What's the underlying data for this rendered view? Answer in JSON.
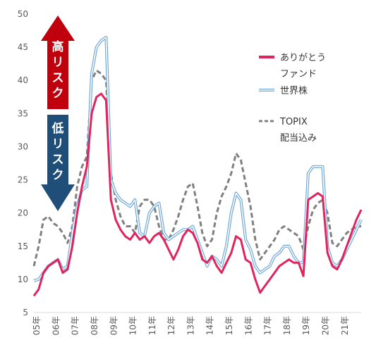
{
  "chart_data": {
    "type": "line",
    "xlabel": "",
    "ylabel": "",
    "ylim": [
      5,
      50
    ],
    "yticks": [
      5,
      10,
      15,
      20,
      25,
      30,
      35,
      40,
      45,
      50
    ],
    "xlim": [
      2005.0,
      2022.0
    ],
    "xticks": [
      {
        "x": 2005,
        "label": "05年"
      },
      {
        "x": 2006,
        "label": "06年"
      },
      {
        "x": 2007,
        "label": "07年"
      },
      {
        "x": 2008,
        "label": "08年"
      },
      {
        "x": 2009,
        "label": "09年"
      },
      {
        "x": 2010,
        "label": "10年"
      },
      {
        "x": 2011,
        "label": "11年"
      },
      {
        "x": 2012,
        "label": "12年"
      },
      {
        "x": 2013,
        "label": "13年"
      },
      {
        "x": 2014,
        "label": "14年"
      },
      {
        "x": 2015,
        "label": "15年"
      },
      {
        "x": 2016,
        "label": "16年"
      },
      {
        "x": 2017,
        "label": "17年"
      },
      {
        "x": 2018,
        "label": "18年"
      },
      {
        "x": 2019,
        "label": "19年"
      },
      {
        "x": 2020,
        "label": "20年"
      },
      {
        "x": 2021,
        "label": "21年"
      }
    ],
    "grid": false,
    "legend_position": "right",
    "arrows": {
      "up": {
        "text": "高リスク",
        "color": "#c0000c"
      },
      "down": {
        "text": "低リスク",
        "color": "#1f4e79"
      }
    },
    "series": [
      {
        "name": "ありがとうファンド",
        "color": "#e0245e",
        "style": "solid",
        "points": [
          [
            2005.0,
            7.5
          ],
          [
            2005.25,
            8.5
          ],
          [
            2005.5,
            11
          ],
          [
            2005.75,
            12
          ],
          [
            2006.0,
            12.5
          ],
          [
            2006.25,
            13
          ],
          [
            2006.5,
            11
          ],
          [
            2006.75,
            11.5
          ],
          [
            2007.0,
            15
          ],
          [
            2007.25,
            20
          ],
          [
            2007.5,
            24
          ],
          [
            2007.75,
            27
          ],
          [
            2008.0,
            35
          ],
          [
            2008.25,
            37.5
          ],
          [
            2008.5,
            38
          ],
          [
            2008.75,
            37
          ],
          [
            2009.0,
            22
          ],
          [
            2009.25,
            19
          ],
          [
            2009.5,
            17.5
          ],
          [
            2009.75,
            16.5
          ],
          [
            2010.0,
            16
          ],
          [
            2010.25,
            17
          ],
          [
            2010.5,
            16
          ],
          [
            2010.75,
            16.5
          ],
          [
            2011.0,
            15.5
          ],
          [
            2011.25,
            16.5
          ],
          [
            2011.5,
            17
          ],
          [
            2011.75,
            16
          ],
          [
            2012.0,
            14.5
          ],
          [
            2012.25,
            13
          ],
          [
            2012.5,
            14.5
          ],
          [
            2012.75,
            16.5
          ],
          [
            2013.0,
            17.5
          ],
          [
            2013.25,
            17
          ],
          [
            2013.5,
            15.5
          ],
          [
            2013.75,
            13
          ],
          [
            2014.0,
            12.5
          ],
          [
            2014.25,
            13.5
          ],
          [
            2014.5,
            12
          ],
          [
            2014.75,
            11
          ],
          [
            2015.0,
            12.5
          ],
          [
            2015.25,
            14
          ],
          [
            2015.5,
            16.5
          ],
          [
            2015.75,
            16
          ],
          [
            2016.0,
            13
          ],
          [
            2016.25,
            12.5
          ],
          [
            2016.5,
            10
          ],
          [
            2016.75,
            8
          ],
          [
            2017.0,
            9
          ],
          [
            2017.25,
            10
          ],
          [
            2017.5,
            11
          ],
          [
            2017.75,
            12
          ],
          [
            2018.0,
            12.5
          ],
          [
            2018.25,
            13
          ],
          [
            2018.5,
            12.5
          ],
          [
            2018.75,
            12.5
          ],
          [
            2019.0,
            10.5
          ],
          [
            2019.25,
            22
          ],
          [
            2019.5,
            22.5
          ],
          [
            2019.75,
            23
          ],
          [
            2020.0,
            22.5
          ],
          [
            2020.25,
            14
          ],
          [
            2020.5,
            12
          ],
          [
            2020.75,
            11.5
          ],
          [
            2021.0,
            13
          ],
          [
            2021.25,
            15
          ],
          [
            2021.5,
            17
          ],
          [
            2021.75,
            19
          ],
          [
            2022.0,
            20.5
          ]
        ]
      },
      {
        "name": "世界株",
        "color": "#6fa8dc",
        "style": "double",
        "points": [
          [
            2005.0,
            9.8
          ],
          [
            2005.25,
            10
          ],
          [
            2005.5,
            11
          ],
          [
            2005.75,
            12
          ],
          [
            2006.0,
            12.5
          ],
          [
            2006.25,
            13
          ],
          [
            2006.5,
            11.5
          ],
          [
            2006.75,
            12
          ],
          [
            2007.0,
            17
          ],
          [
            2007.25,
            21
          ],
          [
            2007.5,
            23.5
          ],
          [
            2007.75,
            24
          ],
          [
            2008.0,
            41
          ],
          [
            2008.25,
            45
          ],
          [
            2008.5,
            46
          ],
          [
            2008.75,
            46.5
          ],
          [
            2009.0,
            25
          ],
          [
            2009.25,
            23
          ],
          [
            2009.5,
            22
          ],
          [
            2009.75,
            21.5
          ],
          [
            2010.0,
            21
          ],
          [
            2010.25,
            22
          ],
          [
            2010.5,
            17
          ],
          [
            2010.75,
            16.5
          ],
          [
            2011.0,
            20
          ],
          [
            2011.25,
            21
          ],
          [
            2011.5,
            21.5
          ],
          [
            2011.75,
            17
          ],
          [
            2012.0,
            16
          ],
          [
            2012.25,
            16.5
          ],
          [
            2012.5,
            17
          ],
          [
            2012.75,
            17.5
          ],
          [
            2013.0,
            17.5
          ],
          [
            2013.25,
            18
          ],
          [
            2013.5,
            16
          ],
          [
            2013.75,
            14
          ],
          [
            2014.0,
            12
          ],
          [
            2014.25,
            13.5
          ],
          [
            2014.5,
            13
          ],
          [
            2014.75,
            12
          ],
          [
            2015.0,
            15
          ],
          [
            2015.25,
            20
          ],
          [
            2015.5,
            23
          ],
          [
            2015.75,
            22
          ],
          [
            2016.0,
            16
          ],
          [
            2016.25,
            14.5
          ],
          [
            2016.5,
            12
          ],
          [
            2016.75,
            11
          ],
          [
            2017.0,
            11.5
          ],
          [
            2017.25,
            12
          ],
          [
            2017.5,
            13.5
          ],
          [
            2017.75,
            14
          ],
          [
            2018.0,
            15
          ],
          [
            2018.25,
            15
          ],
          [
            2018.5,
            13.5
          ],
          [
            2018.75,
            12.5
          ],
          [
            2019.0,
            12.5
          ],
          [
            2019.25,
            26
          ],
          [
            2019.5,
            27
          ],
          [
            2019.75,
            27
          ],
          [
            2020.0,
            27
          ],
          [
            2020.25,
            15
          ],
          [
            2020.5,
            12.5
          ],
          [
            2020.75,
            12
          ],
          [
            2021.0,
            13
          ],
          [
            2021.25,
            14.5
          ],
          [
            2021.5,
            16
          ],
          [
            2021.75,
            17.5
          ],
          [
            2022.0,
            19
          ]
        ]
      },
      {
        "name": "TOPIX配当込み",
        "color": "#808080",
        "style": "dashed",
        "points": [
          [
            2005.0,
            12
          ],
          [
            2005.25,
            15
          ],
          [
            2005.5,
            19
          ],
          [
            2005.75,
            19.5
          ],
          [
            2006.0,
            18.5
          ],
          [
            2006.25,
            18
          ],
          [
            2006.5,
            17
          ],
          [
            2006.75,
            15.5
          ],
          [
            2007.0,
            18
          ],
          [
            2007.25,
            24
          ],
          [
            2007.5,
            27
          ],
          [
            2007.75,
            28.5
          ],
          [
            2008.0,
            40
          ],
          [
            2008.25,
            41.5
          ],
          [
            2008.5,
            41
          ],
          [
            2008.75,
            40
          ],
          [
            2009.0,
            26
          ],
          [
            2009.25,
            22
          ],
          [
            2009.5,
            19.5
          ],
          [
            2009.75,
            18
          ],
          [
            2010.0,
            18
          ],
          [
            2010.25,
            17
          ],
          [
            2010.5,
            21
          ],
          [
            2010.75,
            22
          ],
          [
            2011.0,
            22
          ],
          [
            2011.25,
            21
          ],
          [
            2011.5,
            18
          ],
          [
            2011.75,
            16
          ],
          [
            2012.0,
            16
          ],
          [
            2012.25,
            17.5
          ],
          [
            2012.5,
            19.5
          ],
          [
            2012.75,
            22
          ],
          [
            2013.0,
            24
          ],
          [
            2013.25,
            24.5
          ],
          [
            2013.5,
            21
          ],
          [
            2013.75,
            17
          ],
          [
            2014.0,
            15
          ],
          [
            2014.25,
            16
          ],
          [
            2014.5,
            20
          ],
          [
            2014.75,
            22.5
          ],
          [
            2015.0,
            24
          ],
          [
            2015.25,
            26
          ],
          [
            2015.5,
            29
          ],
          [
            2015.75,
            28
          ],
          [
            2016.0,
            24.5
          ],
          [
            2016.25,
            21
          ],
          [
            2016.5,
            16
          ],
          [
            2016.75,
            13
          ],
          [
            2017.0,
            14
          ],
          [
            2017.25,
            15
          ],
          [
            2017.5,
            16
          ],
          [
            2017.75,
            17.5
          ],
          [
            2018.0,
            18
          ],
          [
            2018.25,
            17.5
          ],
          [
            2018.5,
            17
          ],
          [
            2018.75,
            16.5
          ],
          [
            2019.0,
            14.5
          ],
          [
            2019.25,
            18
          ],
          [
            2019.5,
            20.5
          ],
          [
            2019.75,
            21.5
          ],
          [
            2020.0,
            22
          ],
          [
            2020.25,
            20
          ],
          [
            2020.5,
            15.5
          ],
          [
            2020.75,
            15
          ],
          [
            2021.0,
            16
          ],
          [
            2021.25,
            17
          ],
          [
            2021.5,
            17.5
          ],
          [
            2021.75,
            18
          ],
          [
            2022.0,
            18
          ]
        ]
      }
    ],
    "legend": [
      {
        "label_lines": [
          "ありがとう",
          "ファンド"
        ],
        "color": "#e0245e",
        "style": "solid"
      },
      {
        "label_lines": [
          "世界株"
        ],
        "color": "#6fa8dc",
        "style": "double"
      },
      {
        "label_lines": [
          "TOPIX",
          "配当込み"
        ],
        "color": "#808080",
        "style": "dashed"
      }
    ]
  }
}
